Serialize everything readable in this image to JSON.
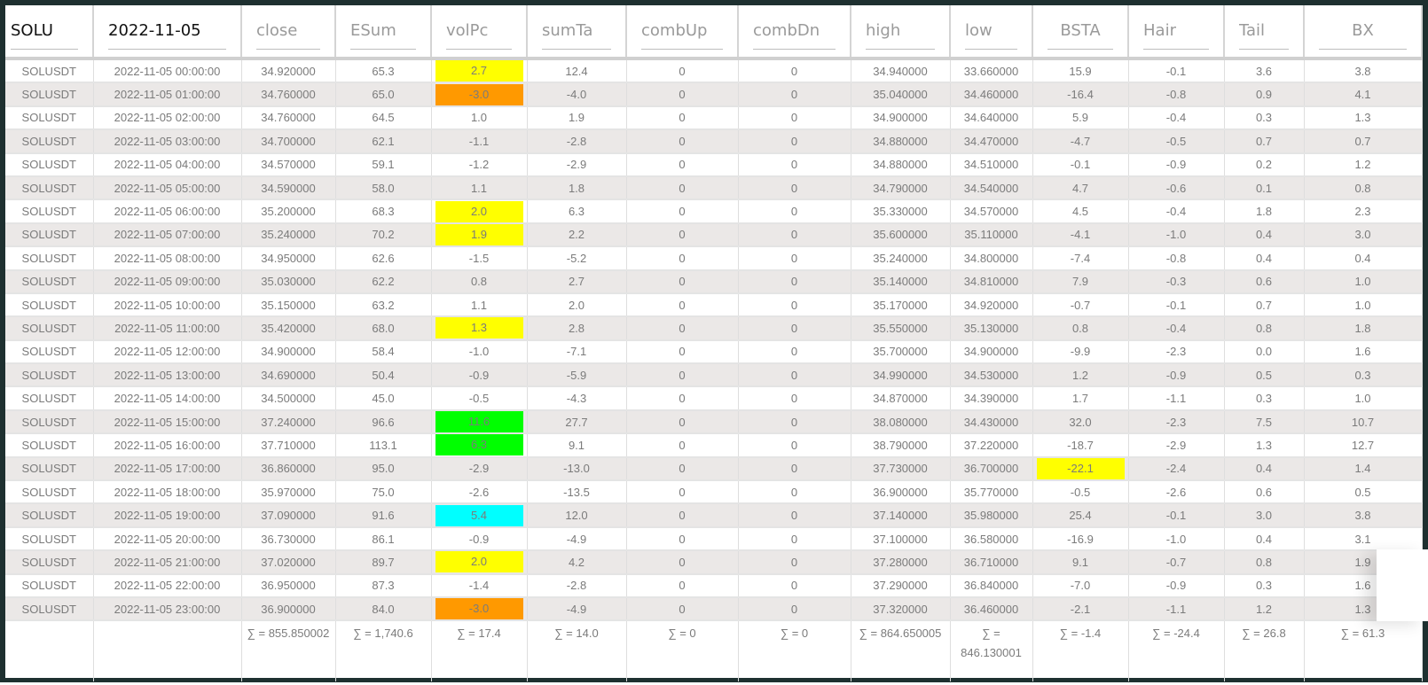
{
  "header": {
    "symbol_filter": "SOLU",
    "date_filter": "2022-11-05",
    "columns": [
      "close",
      "ESum",
      "volPc",
      "sumTa",
      "combUp",
      "combDn",
      "high",
      "low",
      "BSTA",
      "Hair",
      "Tail",
      "BX"
    ]
  },
  "colors": {
    "frame": "#1e3030",
    "yellow": "#ffff00",
    "orange": "#ff9900",
    "green": "#00ff00",
    "cyan": "#00ffff",
    "row_alt": "#ebe8e7"
  },
  "rows": [
    {
      "sym": "SOLUSDT",
      "time": "2022-11-05 00:00:00",
      "close": "34.920000",
      "esum": "65.3",
      "volpc": "2.7",
      "volpc_color": "yellow",
      "sumta": "12.4",
      "combup": "0",
      "combdn": "0",
      "high": "34.940000",
      "low": "33.660000",
      "bsta": "15.9",
      "bsta_color": "",
      "hair": "-0.1",
      "tail": "3.6",
      "bx": "3.8"
    },
    {
      "sym": "SOLUSDT",
      "time": "2022-11-05 01:00:00",
      "close": "34.760000",
      "esum": "65.0",
      "volpc": "-3.0",
      "volpc_color": "orange",
      "sumta": "-4.0",
      "combup": "0",
      "combdn": "0",
      "high": "35.040000",
      "low": "34.460000",
      "bsta": "-16.4",
      "bsta_color": "",
      "hair": "-0.8",
      "tail": "0.9",
      "bx": "4.1"
    },
    {
      "sym": "SOLUSDT",
      "time": "2022-11-05 02:00:00",
      "close": "34.760000",
      "esum": "64.5",
      "volpc": "1.0",
      "volpc_color": "",
      "sumta": "1.9",
      "combup": "0",
      "combdn": "0",
      "high": "34.900000",
      "low": "34.640000",
      "bsta": "5.9",
      "bsta_color": "",
      "hair": "-0.4",
      "tail": "0.3",
      "bx": "1.3"
    },
    {
      "sym": "SOLUSDT",
      "time": "2022-11-05 03:00:00",
      "close": "34.700000",
      "esum": "62.1",
      "volpc": "-1.1",
      "volpc_color": "",
      "sumta": "-2.8",
      "combup": "0",
      "combdn": "0",
      "high": "34.880000",
      "low": "34.470000",
      "bsta": "-4.7",
      "bsta_color": "",
      "hair": "-0.5",
      "tail": "0.7",
      "bx": "0.7"
    },
    {
      "sym": "SOLUSDT",
      "time": "2022-11-05 04:00:00",
      "close": "34.570000",
      "esum": "59.1",
      "volpc": "-1.2",
      "volpc_color": "",
      "sumta": "-2.9",
      "combup": "0",
      "combdn": "0",
      "high": "34.880000",
      "low": "34.510000",
      "bsta": "-0.1",
      "bsta_color": "",
      "hair": "-0.9",
      "tail": "0.2",
      "bx": "1.2"
    },
    {
      "sym": "SOLUSDT",
      "time": "2022-11-05 05:00:00",
      "close": "34.590000",
      "esum": "58.0",
      "volpc": "1.1",
      "volpc_color": "",
      "sumta": "1.8",
      "combup": "0",
      "combdn": "0",
      "high": "34.790000",
      "low": "34.540000",
      "bsta": "4.7",
      "bsta_color": "",
      "hair": "-0.6",
      "tail": "0.1",
      "bx": "0.8"
    },
    {
      "sym": "SOLUSDT",
      "time": "2022-11-05 06:00:00",
      "close": "35.200000",
      "esum": "68.3",
      "volpc": "2.0",
      "volpc_color": "yellow",
      "sumta": "6.3",
      "combup": "0",
      "combdn": "0",
      "high": "35.330000",
      "low": "34.570000",
      "bsta": "4.5",
      "bsta_color": "",
      "hair": "-0.4",
      "tail": "1.8",
      "bx": "2.3"
    },
    {
      "sym": "SOLUSDT",
      "time": "2022-11-05 07:00:00",
      "close": "35.240000",
      "esum": "70.2",
      "volpc": "1.9",
      "volpc_color": "yellow",
      "sumta": "2.2",
      "combup": "0",
      "combdn": "0",
      "high": "35.600000",
      "low": "35.110000",
      "bsta": "-4.1",
      "bsta_color": "",
      "hair": "-1.0",
      "tail": "0.4",
      "bx": "3.0"
    },
    {
      "sym": "SOLUSDT",
      "time": "2022-11-05 08:00:00",
      "close": "34.950000",
      "esum": "62.6",
      "volpc": "-1.5",
      "volpc_color": "",
      "sumta": "-5.2",
      "combup": "0",
      "combdn": "0",
      "high": "35.240000",
      "low": "34.800000",
      "bsta": "-7.4",
      "bsta_color": "",
      "hair": "-0.8",
      "tail": "0.4",
      "bx": "0.4"
    },
    {
      "sym": "SOLUSDT",
      "time": "2022-11-05 09:00:00",
      "close": "35.030000",
      "esum": "62.2",
      "volpc": "0.8",
      "volpc_color": "",
      "sumta": "2.7",
      "combup": "0",
      "combdn": "0",
      "high": "35.140000",
      "low": "34.810000",
      "bsta": "7.9",
      "bsta_color": "",
      "hair": "-0.3",
      "tail": "0.6",
      "bx": "1.0"
    },
    {
      "sym": "SOLUSDT",
      "time": "2022-11-05 10:00:00",
      "close": "35.150000",
      "esum": "63.2",
      "volpc": "1.1",
      "volpc_color": "",
      "sumta": "2.0",
      "combup": "0",
      "combdn": "0",
      "high": "35.170000",
      "low": "34.920000",
      "bsta": "-0.7",
      "bsta_color": "",
      "hair": "-0.1",
      "tail": "0.7",
      "bx": "1.0"
    },
    {
      "sym": "SOLUSDT",
      "time": "2022-11-05 11:00:00",
      "close": "35.420000",
      "esum": "68.0",
      "volpc": "1.3",
      "volpc_color": "yellow",
      "sumta": "2.8",
      "combup": "0",
      "combdn": "0",
      "high": "35.550000",
      "low": "35.130000",
      "bsta": "0.8",
      "bsta_color": "",
      "hair": "-0.4",
      "tail": "0.8",
      "bx": "1.8"
    },
    {
      "sym": "SOLUSDT",
      "time": "2022-11-05 12:00:00",
      "close": "34.900000",
      "esum": "58.4",
      "volpc": "-1.0",
      "volpc_color": "",
      "sumta": "-7.1",
      "combup": "0",
      "combdn": "0",
      "high": "35.700000",
      "low": "34.900000",
      "bsta": "-9.9",
      "bsta_color": "",
      "hair": "-2.3",
      "tail": "0.0",
      "bx": "1.6"
    },
    {
      "sym": "SOLUSDT",
      "time": "2022-11-05 13:00:00",
      "close": "34.690000",
      "esum": "50.4",
      "volpc": "-0.9",
      "volpc_color": "",
      "sumta": "-5.9",
      "combup": "0",
      "combdn": "0",
      "high": "34.990000",
      "low": "34.530000",
      "bsta": "1.2",
      "bsta_color": "",
      "hair": "-0.9",
      "tail": "0.5",
      "bx": "0.3"
    },
    {
      "sym": "SOLUSDT",
      "time": "2022-11-05 14:00:00",
      "close": "34.500000",
      "esum": "45.0",
      "volpc": "-0.5",
      "volpc_color": "",
      "sumta": "-4.3",
      "combup": "0",
      "combdn": "0",
      "high": "34.870000",
      "low": "34.390000",
      "bsta": "1.7",
      "bsta_color": "",
      "hair": "-1.1",
      "tail": "0.3",
      "bx": "1.0"
    },
    {
      "sym": "SOLUSDT",
      "time": "2022-11-05 15:00:00",
      "close": "37.240000",
      "esum": "96.6",
      "volpc": "11.6",
      "volpc_color": "green",
      "sumta": "27.7",
      "combup": "0",
      "combdn": "0",
      "high": "38.080000",
      "low": "34.430000",
      "bsta": "32.0",
      "bsta_color": "",
      "hair": "-2.3",
      "tail": "7.5",
      "bx": "10.7"
    },
    {
      "sym": "SOLUSDT",
      "time": "2022-11-05 16:00:00",
      "close": "37.710000",
      "esum": "113.1",
      "volpc": "6.3",
      "volpc_color": "green",
      "sumta": "9.1",
      "combup": "0",
      "combdn": "0",
      "high": "38.790000",
      "low": "37.220000",
      "bsta": "-18.7",
      "bsta_color": "",
      "hair": "-2.9",
      "tail": "1.3",
      "bx": "12.7"
    },
    {
      "sym": "SOLUSDT",
      "time": "2022-11-05 17:00:00",
      "close": "36.860000",
      "esum": "95.0",
      "volpc": "-2.9",
      "volpc_color": "",
      "sumta": "-13.0",
      "combup": "0",
      "combdn": "0",
      "high": "37.730000",
      "low": "36.700000",
      "bsta": "-22.1",
      "bsta_color": "yellow",
      "hair": "-2.4",
      "tail": "0.4",
      "bx": "1.4"
    },
    {
      "sym": "SOLUSDT",
      "time": "2022-11-05 18:00:00",
      "close": "35.970000",
      "esum": "75.0",
      "volpc": "-2.6",
      "volpc_color": "",
      "sumta": "-13.5",
      "combup": "0",
      "combdn": "0",
      "high": "36.900000",
      "low": "35.770000",
      "bsta": "-0.5",
      "bsta_color": "",
      "hair": "-2.6",
      "tail": "0.6",
      "bx": "0.5"
    },
    {
      "sym": "SOLUSDT",
      "time": "2022-11-05 19:00:00",
      "close": "37.090000",
      "esum": "91.6",
      "volpc": "5.4",
      "volpc_color": "cyan",
      "sumta": "12.0",
      "combup": "0",
      "combdn": "0",
      "high": "37.140000",
      "low": "35.980000",
      "bsta": "25.4",
      "bsta_color": "",
      "hair": "-0.1",
      "tail": "3.0",
      "bx": "3.8"
    },
    {
      "sym": "SOLUSDT",
      "time": "2022-11-05 20:00:00",
      "close": "36.730000",
      "esum": "86.1",
      "volpc": "-0.9",
      "volpc_color": "",
      "sumta": "-4.9",
      "combup": "0",
      "combdn": "0",
      "high": "37.100000",
      "low": "36.580000",
      "bsta": "-16.9",
      "bsta_color": "",
      "hair": "-1.0",
      "tail": "0.4",
      "bx": "3.1"
    },
    {
      "sym": "SOLUSDT",
      "time": "2022-11-05 21:00:00",
      "close": "37.020000",
      "esum": "89.7",
      "volpc": "2.0",
      "volpc_color": "yellow",
      "sumta": "4.2",
      "combup": "0",
      "combdn": "0",
      "high": "37.280000",
      "low": "36.710000",
      "bsta": "9.1",
      "bsta_color": "",
      "hair": "-0.7",
      "tail": "0.8",
      "bx": "1.9"
    },
    {
      "sym": "SOLUSDT",
      "time": "2022-11-05 22:00:00",
      "close": "36.950000",
      "esum": "87.3",
      "volpc": "-1.4",
      "volpc_color": "",
      "sumta": "-2.8",
      "combup": "0",
      "combdn": "0",
      "high": "37.290000",
      "low": "36.840000",
      "bsta": "-7.0",
      "bsta_color": "",
      "hair": "-0.9",
      "tail": "0.3",
      "bx": "1.6"
    },
    {
      "sym": "SOLUSDT",
      "time": "2022-11-05 23:00:00",
      "close": "36.900000",
      "esum": "84.0",
      "volpc": "-3.0",
      "volpc_color": "orange",
      "sumta": "-4.9",
      "combup": "0",
      "combdn": "0",
      "high": "37.320000",
      "low": "36.460000",
      "bsta": "-2.1",
      "bsta_color": "",
      "hair": "-1.1",
      "tail": "1.2",
      "bx": "1.3"
    }
  ],
  "footer": {
    "sym": "",
    "time": "",
    "close": "∑ = 855.850002",
    "esum": "∑ = 1,740.6",
    "volpc": "∑ = 17.4",
    "sumta": "∑ = 14.0",
    "combup": "∑ = 0",
    "combdn": "∑ = 0",
    "high": "∑ = 864.650005",
    "low": "∑ = 846.130001",
    "bsta": "∑ = -1.4",
    "hair": "∑ = -24.4",
    "tail": "∑ = 26.8",
    "bx": "∑ = 61.3"
  }
}
